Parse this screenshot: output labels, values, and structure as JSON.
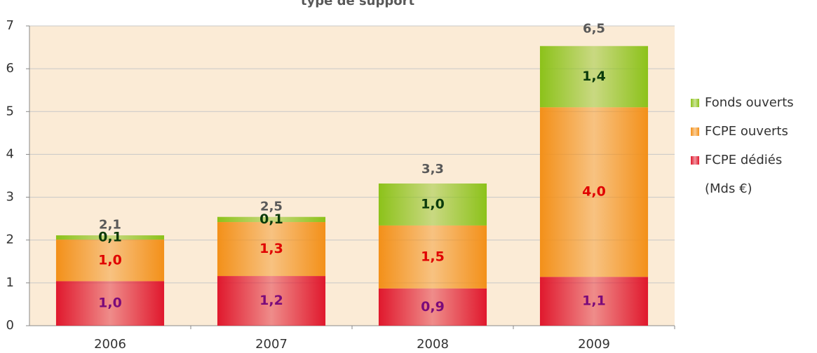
{
  "chart_data": {
    "type": "stacked_bar",
    "title": "type de support",
    "unit": "(Mds €)",
    "categories": [
      "2006",
      "2007",
      "2008",
      "2009"
    ],
    "series": [
      {
        "name": "FCPE dédiés",
        "color": "#e0182d",
        "label_color": "#7a0a7a",
        "values": [
          1.04,
          1.16,
          0.87,
          1.14
        ],
        "value_labels": [
          "1,0",
          "1,2",
          "0,9",
          "1,1"
        ]
      },
      {
        "name": "FCPE ouverts",
        "color": "#f39019",
        "label_color": "#e00000",
        "values": [
          0.97,
          1.26,
          1.47,
          3.96
        ],
        "value_labels": [
          "1,0",
          "1,3",
          "1,5",
          "4,0"
        ]
      },
      {
        "name": "Fonds ouverts",
        "color": "#8cc21a",
        "label_color": "#0b3b0b",
        "values": [
          0.1,
          0.12,
          0.98,
          1.43
        ],
        "value_labels": [
          "0,1",
          "0,1",
          "1,0",
          "1,4"
        ]
      }
    ],
    "totals": [
      2.11,
      2.54,
      3.32,
      6.53
    ],
    "total_labels": [
      "2,1",
      "2,5",
      "3,3",
      "6,5"
    ],
    "ylim": [
      0,
      7
    ],
    "yticks": [
      0,
      1,
      2,
      3,
      4,
      5,
      6,
      7
    ],
    "grid": true,
    "legend": "right"
  }
}
